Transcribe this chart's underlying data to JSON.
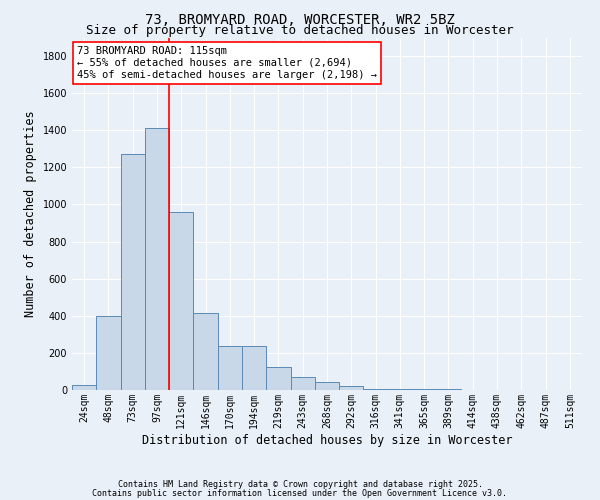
{
  "title": "73, BROMYARD ROAD, WORCESTER, WR2 5BZ",
  "subtitle": "Size of property relative to detached houses in Worcester",
  "xlabel": "Distribution of detached houses by size in Worcester",
  "ylabel": "Number of detached properties",
  "footnote1": "Contains HM Land Registry data © Crown copyright and database right 2025.",
  "footnote2": "Contains public sector information licensed under the Open Government Licence v3.0.",
  "bin_labels": [
    "24sqm",
    "48sqm",
    "73sqm",
    "97sqm",
    "121sqm",
    "146sqm",
    "170sqm",
    "194sqm",
    "219sqm",
    "243sqm",
    "268sqm",
    "292sqm",
    "316sqm",
    "341sqm",
    "365sqm",
    "389sqm",
    "414sqm",
    "438sqm",
    "462sqm",
    "487sqm",
    "511sqm"
  ],
  "bar_values": [
    25,
    400,
    1270,
    1410,
    960,
    415,
    235,
    235,
    125,
    70,
    45,
    20,
    8,
    5,
    4,
    3,
    2,
    2,
    1,
    1,
    1
  ],
  "bar_color": "#c8d8e8",
  "bar_edge_color": "#5a8ab5",
  "vline_color": "red",
  "annotation_text": "73 BROMYARD ROAD: 115sqm\n← 55% of detached houses are smaller (2,694)\n45% of semi-detached houses are larger (2,198) →",
  "annotation_box_color": "white",
  "annotation_box_edge_color": "red",
  "ylim": [
    0,
    1900
  ],
  "yticks": [
    0,
    200,
    400,
    600,
    800,
    1000,
    1200,
    1400,
    1600,
    1800
  ],
  "bg_color": "#eaf0f8",
  "plot_bg_color": "#eaf0f8",
  "grid_color": "white",
  "title_fontsize": 10,
  "subtitle_fontsize": 9,
  "axis_label_fontsize": 8.5,
  "tick_fontsize": 7,
  "annotation_fontsize": 7.5,
  "footnote_fontsize": 6
}
